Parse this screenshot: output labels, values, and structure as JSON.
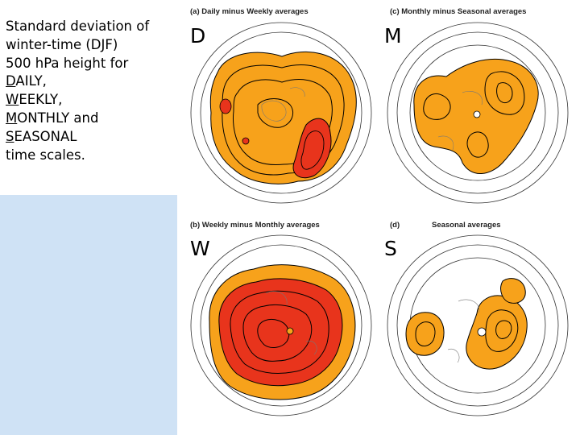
{
  "caption": {
    "line1": "Standard deviation of",
    "line2": "winter-time (DJF)",
    "line3": "500 hPa height for",
    "daily_first": "D",
    "daily_rest": "AILY,",
    "weekly_first": "W",
    "weekly_rest": "EEKLY,",
    "monthly_first": "M",
    "monthly_rest": "ONTHLY and",
    "seasonal_first": "S",
    "seasonal_rest": "EASONAL",
    "line8": "time scales."
  },
  "panels": {
    "a": {
      "title": "(a) Daily minus Weekly averages",
      "letter": "D"
    },
    "c": {
      "title": "(c) Monthly minus Seasonal averages",
      "letter": "M"
    },
    "b": {
      "title": "(b) Weekly minus Monthly averages",
      "letter": "W"
    },
    "d_label": "(d)",
    "d_title": "Seasonal averages",
    "d": {
      "letter": "S"
    }
  },
  "colors": {
    "orange_fill": "#f7a21b",
    "red_fill": "#e8341c",
    "contour": "#000000",
    "caption_panel_bg": "#cfe2f5"
  }
}
